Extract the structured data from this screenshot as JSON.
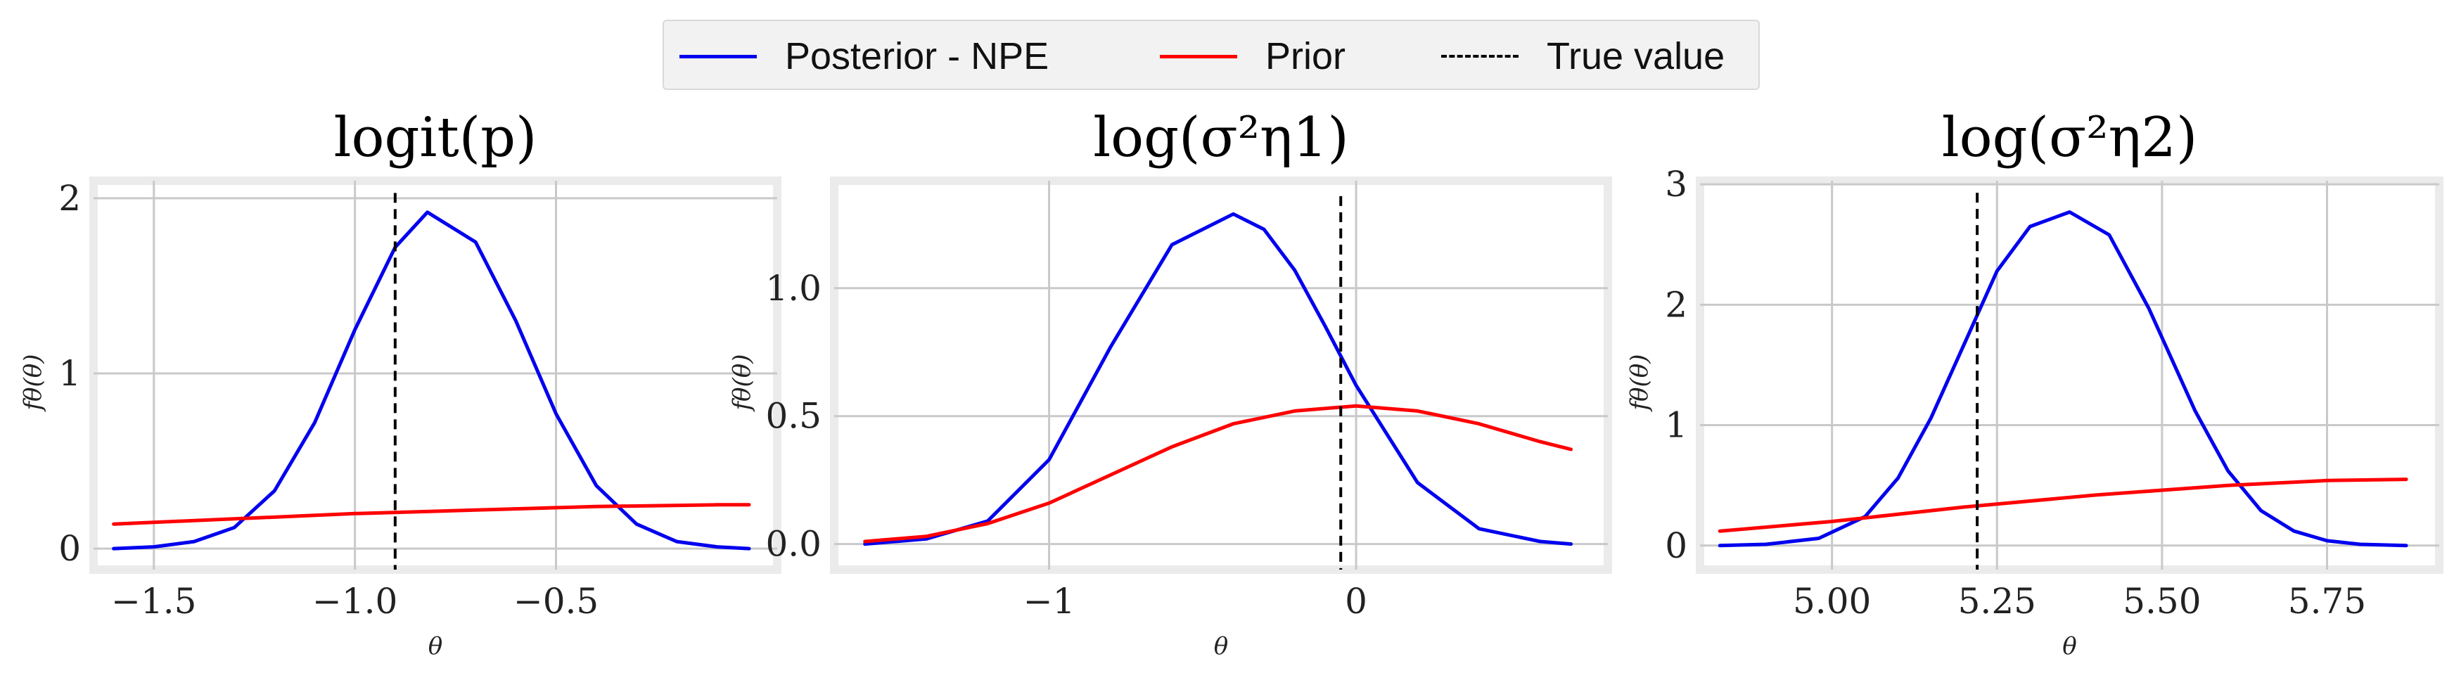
{
  "legend": {
    "items": [
      {
        "label": "Posterior - NPE",
        "color": "#0000ee",
        "style": "solid"
      },
      {
        "label": "Prior",
        "color": "#ff0000",
        "style": "solid"
      },
      {
        "label": "True value",
        "color": "#000000",
        "style": "dashed"
      }
    ]
  },
  "chart_data": [
    {
      "type": "line",
      "title": "logit(p)",
      "xlabel": "θ",
      "ylabel": "fθ(θ)",
      "xlim": [
        -1.65,
        0.05
      ],
      "ylim": [
        -0.12,
        2.1
      ],
      "xticks": [
        -1.5,
        -1.0,
        -0.5
      ],
      "xtick_labels": [
        "−1.5",
        "−1.0",
        "−0.5"
      ],
      "yticks": [
        0,
        1,
        2
      ],
      "ytick_labels": [
        "0",
        "1",
        "2"
      ],
      "grid": true,
      "true_value": -0.9,
      "true_value_line_top": 2.03,
      "series": [
        {
          "name": "Posterior - NPE",
          "color": "#0000ee",
          "x": [
            -1.6,
            -1.5,
            -1.4,
            -1.3,
            -1.2,
            -1.1,
            -1.0,
            -0.9,
            -0.82,
            -0.7,
            -0.6,
            -0.5,
            -0.4,
            -0.3,
            -0.2,
            -0.1,
            -0.02
          ],
          "y": [
            0.0,
            0.01,
            0.04,
            0.12,
            0.33,
            0.72,
            1.25,
            1.72,
            1.92,
            1.75,
            1.3,
            0.77,
            0.36,
            0.14,
            0.04,
            0.01,
            0.0
          ]
        },
        {
          "name": "Prior",
          "color": "#ff0000",
          "x": [
            -1.6,
            -1.3,
            -1.0,
            -0.7,
            -0.4,
            -0.1,
            -0.02
          ],
          "y": [
            0.14,
            0.17,
            0.2,
            0.22,
            0.24,
            0.25,
            0.25
          ]
        }
      ]
    },
    {
      "type": "line",
      "title": "log(σ²η1)",
      "xlabel": "θ",
      "ylabel": "fθ(θ)",
      "xlim": [
        -1.7,
        0.82
      ],
      "ylim": [
        -0.1,
        1.42
      ],
      "xticks": [
        -1,
        0
      ],
      "xtick_labels": [
        "−1",
        "0"
      ],
      "yticks": [
        0.0,
        0.5,
        1.0
      ],
      "ytick_labels": [
        "0.0",
        "0.5",
        "1.0"
      ],
      "grid": true,
      "true_value": -0.05,
      "true_value_line_top": 1.36,
      "series": [
        {
          "name": "Posterior - NPE",
          "color": "#0000ee",
          "x": [
            -1.6,
            -1.4,
            -1.2,
            -1.0,
            -0.8,
            -0.6,
            -0.4,
            -0.3,
            -0.2,
            -0.1,
            0.0,
            0.2,
            0.4,
            0.6,
            0.7
          ],
          "y": [
            0.0,
            0.02,
            0.09,
            0.33,
            0.77,
            1.17,
            1.29,
            1.23,
            1.07,
            0.85,
            0.62,
            0.24,
            0.06,
            0.01,
            0.0
          ]
        },
        {
          "name": "Prior",
          "color": "#ff0000",
          "x": [
            -1.6,
            -1.4,
            -1.2,
            -1.0,
            -0.8,
            -0.6,
            -0.4,
            -0.2,
            0.0,
            0.2,
            0.4,
            0.6,
            0.7
          ],
          "y": [
            0.01,
            0.03,
            0.08,
            0.16,
            0.27,
            0.38,
            0.47,
            0.52,
            0.54,
            0.52,
            0.47,
            0.4,
            0.37
          ]
        }
      ]
    },
    {
      "type": "line",
      "title": "log(σ²η2)",
      "xlabel": "θ",
      "ylabel": "fθ(θ)",
      "xlim": [
        4.8,
        5.92
      ],
      "ylim": [
        -0.2,
        3.03
      ],
      "xticks": [
        5.0,
        5.25,
        5.5,
        5.75
      ],
      "xtick_labels": [
        "5.00",
        "5.25",
        "5.50",
        "5.75"
      ],
      "yticks": [
        0,
        1,
        2,
        3
      ],
      "ytick_labels": [
        "0",
        "1",
        "2",
        "3"
      ],
      "grid": true,
      "true_value": 5.22,
      "true_value_line_top": 2.93,
      "series": [
        {
          "name": "Posterior - NPE",
          "color": "#0000ee",
          "x": [
            4.83,
            4.9,
            4.98,
            5.05,
            5.1,
            5.15,
            5.2,
            5.25,
            5.3,
            5.36,
            5.42,
            5.48,
            5.55,
            5.6,
            5.65,
            5.7,
            5.75,
            5.8,
            5.87
          ],
          "y": [
            0.0,
            0.01,
            0.06,
            0.24,
            0.56,
            1.06,
            1.67,
            2.28,
            2.65,
            2.77,
            2.58,
            1.97,
            1.12,
            0.62,
            0.29,
            0.12,
            0.04,
            0.01,
            0.0
          ]
        },
        {
          "name": "Prior",
          "color": "#ff0000",
          "x": [
            4.83,
            5.0,
            5.2,
            5.4,
            5.6,
            5.75,
            5.87
          ],
          "y": [
            0.12,
            0.2,
            0.32,
            0.42,
            0.5,
            0.54,
            0.55
          ]
        }
      ]
    }
  ]
}
